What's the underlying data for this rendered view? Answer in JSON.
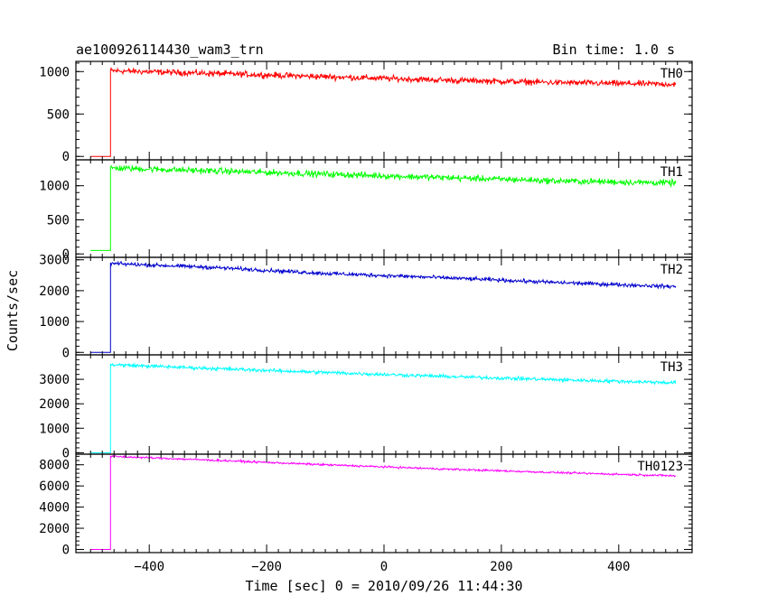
{
  "header": {
    "title": "ae100926114430_wam3_trn",
    "bin_time": "Bin time: 1.0 s"
  },
  "axes": {
    "xlabel": "Time [sec] 0 = 2010/09/26 11:44:30",
    "ylabel": "Counts/sec"
  },
  "chart_data": {
    "type": "line",
    "title": "ae100926114430_wam3_trn",
    "subtitle": "Bin time: 1.0 s",
    "xlabel": "Time [sec] 0 = 2010/09/26 11:44:30",
    "ylabel": "Counts/sec",
    "xlim": [
      -525,
      525
    ],
    "xticks": [
      -400,
      -200,
      0,
      200,
      400
    ],
    "grid": false,
    "panels": [
      {
        "name": "TH0",
        "color": "#ff0000",
        "ylim": [
          -40,
          1120
        ],
        "yticks": [
          0,
          500,
          1000
        ],
        "pre_level": 0,
        "onset_time": -466,
        "trend": [
          [
            -466,
            1010
          ],
          [
            -300,
            980
          ],
          [
            -100,
            940
          ],
          [
            100,
            900
          ],
          [
            300,
            870
          ],
          [
            500,
            850
          ]
        ],
        "noise_amplitude": 35
      },
      {
        "name": "TH1",
        "color": "#00ff00",
        "ylim": [
          -50,
          1380
        ],
        "yticks": [
          0,
          500,
          1000
        ],
        "pre_level": 50,
        "onset_time": -466,
        "trend": [
          [
            -466,
            1260
          ],
          [
            -300,
            1220
          ],
          [
            -100,
            1170
          ],
          [
            100,
            1120
          ],
          [
            300,
            1070
          ],
          [
            500,
            1040
          ]
        ],
        "noise_amplitude": 45
      },
      {
        "name": "TH2",
        "color": "#0000cc",
        "ylim": [
          -80,
          3080
        ],
        "yticks": [
          0,
          1000,
          2000,
          3000
        ],
        "pre_level": 0,
        "onset_time": -466,
        "trend": [
          [
            -466,
            2880
          ],
          [
            -300,
            2760
          ],
          [
            -100,
            2560
          ],
          [
            100,
            2420
          ],
          [
            300,
            2260
          ],
          [
            500,
            2130
          ]
        ],
        "noise_amplitude": 60
      },
      {
        "name": "TH3",
        "color": "#00ffff",
        "ylim": [
          -60,
          4000
        ],
        "yticks": [
          0,
          1000,
          2000,
          3000
        ],
        "pre_level": 0,
        "onset_time": -466,
        "trend": [
          [
            -466,
            3600
          ],
          [
            -300,
            3450
          ],
          [
            -100,
            3280
          ],
          [
            100,
            3120
          ],
          [
            300,
            2980
          ],
          [
            500,
            2860
          ]
        ],
        "noise_amplitude": 70
      },
      {
        "name": "TH0123",
        "color": "#ff00ff",
        "ylim": [
          -300,
          9000
        ],
        "yticks": [
          0,
          2000,
          4000,
          6000,
          8000
        ],
        "pre_level": 0,
        "onset_time": -466,
        "trend": [
          [
            -466,
            8800
          ],
          [
            -300,
            8450
          ],
          [
            -100,
            8000
          ],
          [
            100,
            7600
          ],
          [
            300,
            7250
          ],
          [
            500,
            6950
          ]
        ],
        "noise_amplitude": 90
      }
    ]
  }
}
